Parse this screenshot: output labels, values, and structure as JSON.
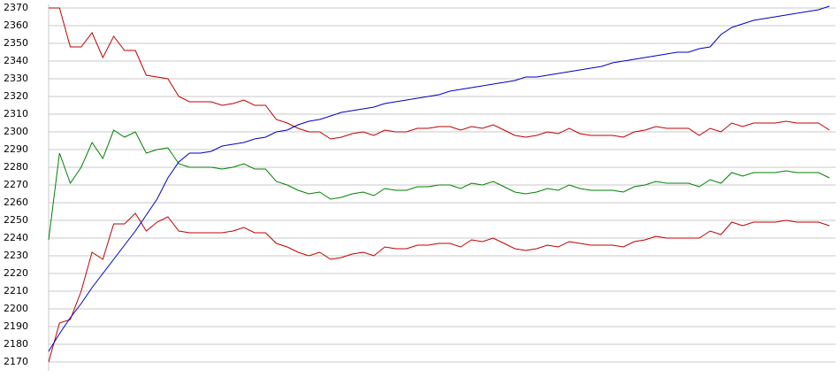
{
  "chart_data": {
    "type": "line",
    "grid": true,
    "ylim": [
      2165,
      2372
    ],
    "yticks": [
      2170,
      2180,
      2190,
      2200,
      2210,
      2220,
      2230,
      2240,
      2250,
      2260,
      2270,
      2280,
      2290,
      2300,
      2310,
      2320,
      2330,
      2340,
      2350,
      2360,
      2370
    ],
    "series": [
      {
        "color": "#c00000",
        "values": [
          2370,
          2370,
          2348,
          2348,
          2356,
          2342,
          2354,
          2346,
          2346,
          2332,
          2331,
          2330,
          2320,
          2317,
          2317,
          2317,
          2315,
          2316,
          2318,
          2315,
          2315,
          2307,
          2305,
          2302,
          2300,
          2300,
          2296,
          2297,
          2299,
          2300,
          2298,
          2301,
          2300,
          2300,
          2302,
          2302,
          2303,
          2303,
          2301,
          2303,
          2302,
          2304,
          2301,
          2298,
          2297,
          2298,
          2300,
          2299,
          2302,
          2299,
          2298,
          2298,
          2298,
          2297,
          2300,
          2301,
          2303,
          2302,
          2302,
          2302,
          2298,
          2302,
          2300,
          2305,
          2303,
          2305,
          2305,
          2305,
          2306,
          2305,
          2305,
          2305,
          2301
        ]
      },
      {
        "color": "#008000",
        "values": [
          2239,
          2288,
          2271,
          2280,
          2294,
          2285,
          2301,
          2297,
          2300,
          2288,
          2290,
          2291,
          2282,
          2280,
          2280,
          2280,
          2279,
          2280,
          2282,
          2279,
          2279,
          2272,
          2270,
          2267,
          2265,
          2266,
          2262,
          2263,
          2265,
          2266,
          2264,
          2268,
          2267,
          2267,
          2269,
          2269,
          2270,
          2270,
          2268,
          2271,
          2270,
          2272,
          2269,
          2266,
          2265,
          2266,
          2268,
          2267,
          2270,
          2268,
          2267,
          2267,
          2267,
          2266,
          2269,
          2270,
          2272,
          2271,
          2271,
          2271,
          2269,
          2273,
          2271,
          2277,
          2275,
          2277,
          2277,
          2277,
          2278,
          2277,
          2277,
          2277,
          2274
        ]
      },
      {
        "color": "#c00000",
        "values": [
          2170,
          2192,
          2194,
          2210,
          2232,
          2228,
          2248,
          2248,
          2254,
          2244,
          2249,
          2252,
          2244,
          2243,
          2243,
          2243,
          2243,
          2244,
          2246,
          2243,
          2243,
          2237,
          2235,
          2232,
          2230,
          2232,
          2228,
          2229,
          2231,
          2232,
          2230,
          2235,
          2234,
          2234,
          2236,
          2236,
          2237,
          2237,
          2235,
          2239,
          2238,
          2240,
          2237,
          2234,
          2233,
          2234,
          2236,
          2235,
          2238,
          2237,
          2236,
          2236,
          2236,
          2235,
          2238,
          2239,
          2241,
          2240,
          2240,
          2240,
          2240,
          2244,
          2242,
          2249,
          2247,
          2249,
          2249,
          2249,
          2250,
          2249,
          2249,
          2249,
          2247
        ]
      },
      {
        "color": "#0000c0",
        "values": [
          2176,
          2186,
          2195,
          2203,
          2212,
          2220,
          2228,
          2236,
          2244,
          2253,
          2262,
          2274,
          2283,
          2288,
          2288,
          2289,
          2292,
          2293,
          2294,
          2296,
          2297,
          2300,
          2301,
          2304,
          2306,
          2307,
          2309,
          2311,
          2312,
          2313,
          2314,
          2316,
          2317,
          2318,
          2319,
          2320,
          2321,
          2323,
          2324,
          2325,
          2326,
          2327,
          2328,
          2329,
          2331,
          2331,
          2332,
          2333,
          2334,
          2335,
          2336,
          2337,
          2339,
          2340,
          2341,
          2342,
          2343,
          2344,
          2345,
          2345,
          2347,
          2348,
          2355,
          2359,
          2361,
          2363,
          2364,
          2365,
          2366,
          2367,
          2368,
          2369,
          2371
        ]
      }
    ]
  }
}
